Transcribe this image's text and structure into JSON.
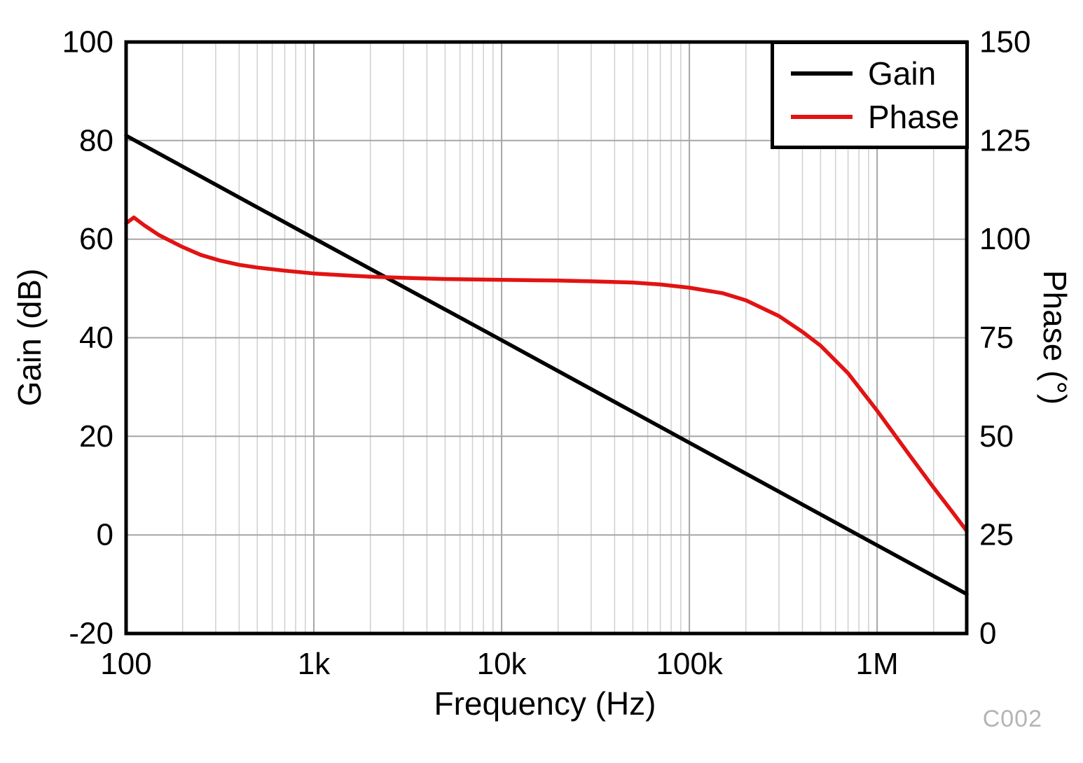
{
  "chart_data": {
    "type": "line",
    "title": "",
    "xlabel": "Frequency (Hz)",
    "ylabel_left": "Gain (dB)",
    "ylabel_right": "Phase (°)",
    "watermark": "C002",
    "x_scale": "log",
    "x_range": [
      100,
      3000000
    ],
    "x_ticks": [
      {
        "value": 100,
        "label": "100"
      },
      {
        "value": 1000,
        "label": "1k"
      },
      {
        "value": 10000,
        "label": "10k"
      },
      {
        "value": 100000,
        "label": "100k"
      },
      {
        "value": 1000000,
        "label": "1M"
      }
    ],
    "y_left": {
      "range": [
        -20,
        100
      ],
      "ticks": [
        100,
        80,
        60,
        40,
        20,
        0,
        -20
      ]
    },
    "y_right": {
      "range": [
        0,
        150
      ],
      "ticks": [
        150,
        125,
        100,
        75,
        50,
        25,
        0
      ]
    },
    "grid": true,
    "legend_position": "top-right",
    "series": [
      {
        "name": "Gain",
        "axis": "left",
        "color": "#000000",
        "x": [
          100,
          1000,
          10000,
          100000,
          1000000,
          3000000
        ],
        "y": [
          81,
          60.2,
          39.5,
          18.7,
          -2.1,
          -12
        ]
      },
      {
        "name": "Phase",
        "axis": "right",
        "color": "#e21313",
        "x": [
          100,
          110,
          125,
          150,
          200,
          250,
          320,
          400,
          500,
          700,
          1000,
          1500,
          2000,
          3000,
          5000,
          10000,
          20000,
          30000,
          50000,
          70000,
          100000,
          150000,
          200000,
          300000,
          400000,
          500000,
          700000,
          1000000,
          1500000,
          2000000,
          2500000,
          3000000
        ],
        "y": [
          104,
          105.5,
          103.5,
          101,
          98,
          96,
          94.5,
          93.5,
          92.8,
          92,
          91.3,
          90.8,
          90.5,
          90.2,
          89.9,
          89.7,
          89.5,
          89.3,
          89,
          88.5,
          87.7,
          86.3,
          84.5,
          80.5,
          76.5,
          73,
          66,
          56.5,
          45,
          37,
          31,
          26
        ]
      }
    ]
  }
}
